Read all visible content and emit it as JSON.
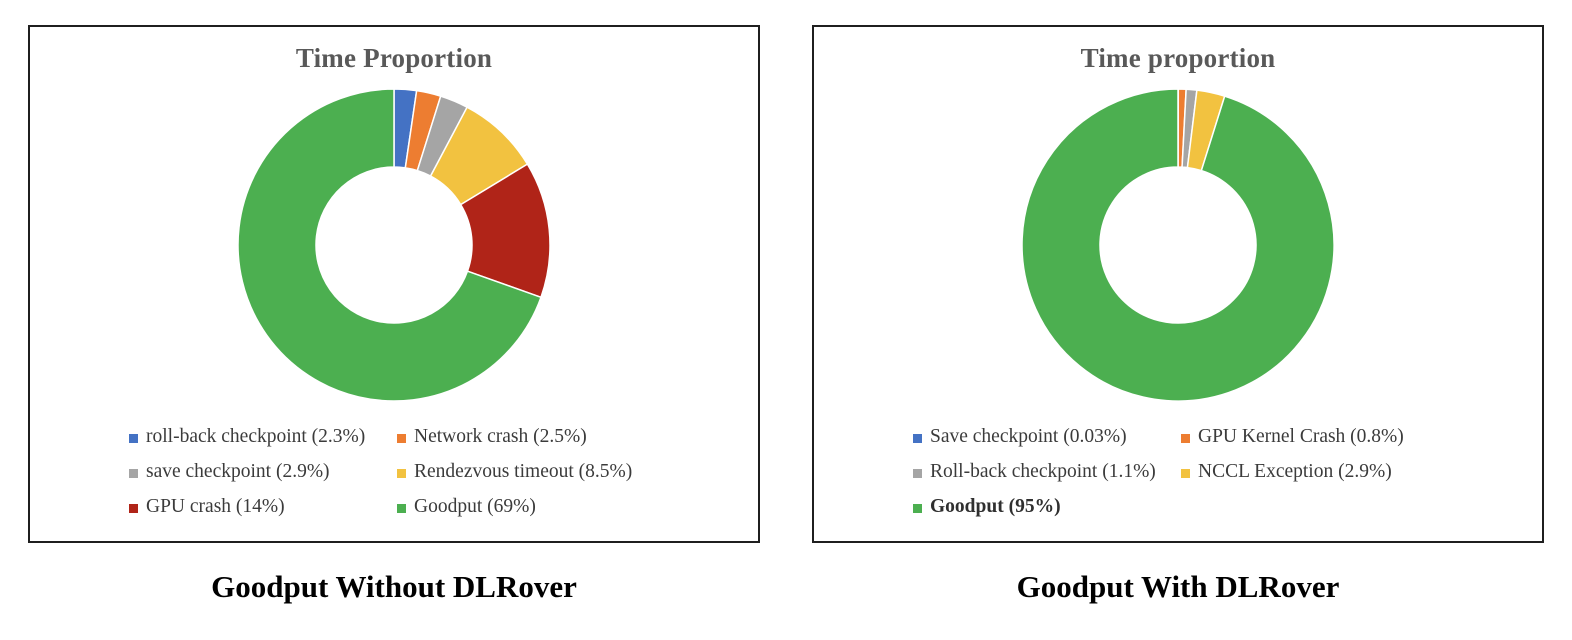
{
  "chart_data": [
    {
      "type": "pie",
      "subtype": "donut",
      "title": "Time Proportion",
      "caption": "Goodput Without DLRover",
      "legend_position": "bottom",
      "legend_columns": 2,
      "slices": [
        {
          "category": "roll-back checkpoint",
          "label": "roll-back checkpoint (2.3%)",
          "value": 2.3,
          "color": "#4472C4",
          "bold": false
        },
        {
          "category": "Network crash",
          "label": "Network crash (2.5%)",
          "value": 2.5,
          "color": "#ED7D31",
          "bold": false
        },
        {
          "category": "save checkpoint",
          "label": "save checkpoint (2.9%)",
          "value": 2.9,
          "color": "#A5A5A5",
          "bold": false
        },
        {
          "category": "Rendezvous timeout",
          "label": "Rendezvous timeout (8.5%)",
          "value": 8.5,
          "color": "#F2C240",
          "bold": false
        },
        {
          "category": "GPU crash",
          "label": "GPU crash (14%)",
          "value": 14,
          "color": "#B02418",
          "bold": false
        },
        {
          "category": "Goodput",
          "label": "Goodput (69%)",
          "value": 69,
          "color": "#4CAF50",
          "bold": false
        }
      ]
    },
    {
      "type": "pie",
      "subtype": "donut",
      "title": "Time proportion",
      "caption": "Goodput With DLRover",
      "legend_position": "bottom",
      "legend_columns": 2,
      "slices": [
        {
          "category": "Save checkpoint",
          "label": "Save checkpoint (0.03%)",
          "value": 0.03,
          "color": "#4472C4",
          "bold": false
        },
        {
          "category": "GPU Kernel Crash",
          "label": "GPU Kernel Crash (0.8%)",
          "value": 0.8,
          "color": "#ED7D31",
          "bold": false
        },
        {
          "category": "Roll-back checkpoint",
          "label": "Roll-back checkpoint (1.1%)",
          "value": 1.1,
          "color": "#A5A5A5",
          "bold": false
        },
        {
          "category": "NCCL Exception",
          "label": "NCCL Exception (2.9%)",
          "value": 2.9,
          "color": "#F2C240",
          "bold": false
        },
        {
          "category": "Goodput",
          "label": "Goodput (95%)",
          "value": 95,
          "color": "#4CAF50",
          "bold": true
        }
      ]
    }
  ]
}
